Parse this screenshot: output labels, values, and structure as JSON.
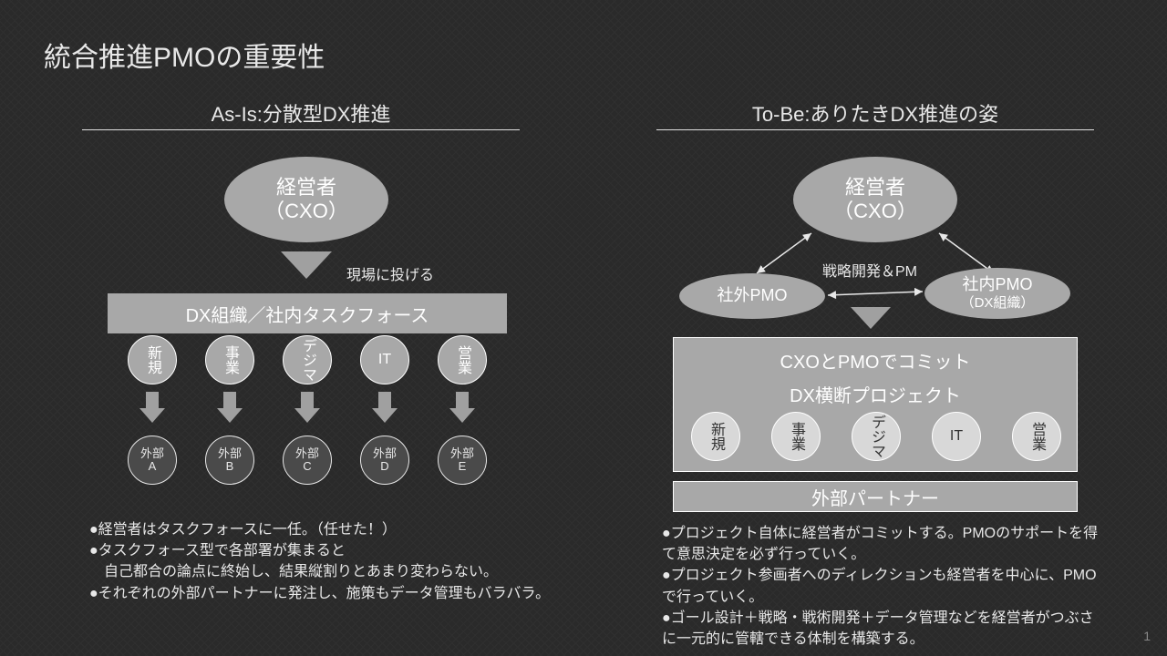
{
  "title": "統合推進PMOの重要性",
  "page_number": "1",
  "colors": {
    "bg": "#2a2a2a",
    "fg": "#e8e8e8",
    "shape_light": "#a8a8a8",
    "shape_dark": "#4a4a4a",
    "border": "#ffffff"
  },
  "left": {
    "heading": "As-Is:分散型DX推進",
    "cxo_line1": "経営者",
    "cxo_line2": "（CXO）",
    "throw_label": "現場に投げる",
    "taskforce": "DX組織／社内タスクフォース",
    "depts": [
      "新規",
      "事業",
      "デジマ",
      "IT",
      "営業"
    ],
    "externals": [
      "外部A",
      "外部B",
      "外部C",
      "外部D",
      "外部E"
    ],
    "bullets": [
      "●経営者はタスクフォースに一任。（任せた！）",
      "●タスクフォース型で各部署が集まると",
      "　自己都合の論点に終始し、結果縦割りとあまり変わらない。",
      "●それぞれの外部パートナーに発注し、施策もデータ管理もバラバラ。"
    ]
  },
  "right": {
    "heading": "To-Be:ありたきDX推進の姿",
    "cxo_line1": "経営者",
    "cxo_line2": "（CXO）",
    "center_label": "戦略開発＆PM",
    "pmo_ext": "社外PMO",
    "pmo_int_line1": "社内PMO",
    "pmo_int_line2": "（DX組織）",
    "commit": "CXOとPMOでコミット",
    "project": "DX横断プロジェクト",
    "depts": [
      "新規",
      "事業",
      "デジマ",
      "IT",
      "営業"
    ],
    "partner": "外部パートナー",
    "bullets": [
      "●プロジェクト自体に経営者がコミットする。PMOのサポートを得て意思決定を必ず行っていく。",
      "●プロジェクト参画者へのディレクションも経営者を中心に、PMOで行っていく。",
      "●ゴール設計＋戦略・戦術開発＋データ管理などを経営者がつぶさに一元的に管轄できる体制を構築する。"
    ]
  }
}
